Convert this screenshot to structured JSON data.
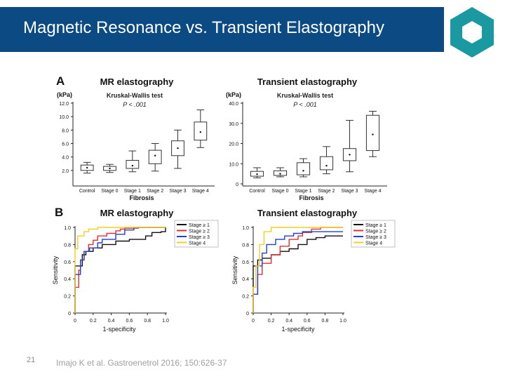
{
  "slide": {
    "title": "Magnetic Resonance vs. Transient Elastography",
    "page_number": "21",
    "reference": "Imajo K et al. Gastroenetrol 2016; 150:626-37"
  },
  "colors": {
    "banner": "#0b4a82",
    "logo": "#1a9aa0",
    "stage1": "#111111",
    "stage2": "#e03030",
    "stage3": "#2040d0",
    "stage4": "#f2d020"
  },
  "panel_a": {
    "label": "A",
    "xlabel": "Fibrosis"
  },
  "panel_b": {
    "label": "B",
    "legend": [
      "Stage ≥ 1",
      "Stage ≥ 2",
      "Stage ≥ 3",
      "Stage 4"
    ]
  },
  "chart_data": [
    {
      "type": "box",
      "title": "MR elastography",
      "test_label": "Kruskal-Wallis test",
      "p_value": "P < .001",
      "ylabel": "(kPa)",
      "xlabel": "Fibrosis",
      "ylim": [
        0,
        12
      ],
      "yticks": [
        "2.0",
        "4.0",
        "6.0",
        "8.0",
        "10.0",
        "12.0"
      ],
      "categories": [
        "Control",
        "Stage 0",
        "Stage 1",
        "Stage 2",
        "Stage 3",
        "Stage 4"
      ],
      "boxes": [
        {
          "min": 1.6,
          "q1": 2.0,
          "median": 2.4,
          "q3": 2.8,
          "max": 3.2,
          "mean": 2.4
        },
        {
          "min": 1.7,
          "q1": 2.0,
          "median": 2.3,
          "q3": 2.6,
          "max": 2.9,
          "mean": 2.3
        },
        {
          "min": 1.8,
          "q1": 2.3,
          "median": 2.7,
          "q3": 3.5,
          "max": 4.9,
          "mean": 2.7
        },
        {
          "min": 1.9,
          "q1": 3.0,
          "median": 4.2,
          "q3": 5.0,
          "max": 6.0,
          "mean": 4.2
        },
        {
          "min": 2.3,
          "q1": 4.2,
          "median": 5.3,
          "q3": 6.4,
          "max": 8.0,
          "mean": 5.3
        },
        {
          "min": 5.4,
          "q1": 6.5,
          "median": 7.7,
          "q3": 9.2,
          "max": 11.0,
          "mean": 7.7
        }
      ]
    },
    {
      "type": "box",
      "title": "Transient elastography",
      "test_label": "Kruskal-Wallis test",
      "p_value": "P < .001",
      "ylabel": "(kPa)",
      "xlabel": "Fibrosis",
      "ylim": [
        0,
        40
      ],
      "yticks": [
        "0",
        "10.0",
        "20.0",
        "30.0",
        "40.0"
      ],
      "categories": [
        "Control",
        "Stage 0",
        "Stage 1",
        "Stage 2",
        "Stage 3",
        "Stage 4"
      ],
      "boxes": [
        {
          "min": 3.0,
          "q1": 3.8,
          "median": 4.8,
          "q3": 6.2,
          "max": 8.0,
          "mean": 4.8
        },
        {
          "min": 3.5,
          "q1": 4.2,
          "median": 5.0,
          "q3": 6.5,
          "max": 8.0,
          "mean": 5.0
        },
        {
          "min": 3.5,
          "q1": 4.5,
          "median": 6.5,
          "q3": 10.5,
          "max": 12.5,
          "mean": 6.5
        },
        {
          "min": 5.0,
          "q1": 7.0,
          "median": 9.0,
          "q3": 13.5,
          "max": 18.5,
          "mean": 9.0
        },
        {
          "min": 6.0,
          "q1": 11.5,
          "median": 14.5,
          "q3": 17.5,
          "max": 31.5,
          "mean": 14.5
        },
        {
          "min": 13.5,
          "q1": 16.5,
          "median": 24.5,
          "q3": 34.0,
          "max": 36.0,
          "mean": 24.5
        }
      ]
    },
    {
      "type": "line",
      "title": "MR elastography",
      "xlabel": "1-specificity",
      "ylabel": "Sensitivity",
      "xlim": [
        0,
        1
      ],
      "ylim": [
        0,
        1
      ],
      "xticks": [
        "0",
        "0.2",
        "0.4",
        "0.6",
        "0.8",
        "1.0"
      ],
      "yticks": [
        "0",
        "0.2",
        "0.4",
        "0.6",
        "0.8",
        "1.0"
      ],
      "series": [
        {
          "name": "Stage ≥ 1",
          "color": "#111111",
          "x": [
            0,
            0,
            0.08,
            0.08,
            0.12,
            0.2,
            0.3,
            0.45,
            0.6,
            0.72,
            0.78,
            0.85,
            0.95,
            1.0
          ],
          "y": [
            0,
            0.55,
            0.55,
            0.68,
            0.72,
            0.76,
            0.8,
            0.84,
            0.86,
            0.86,
            0.9,
            0.94,
            0.95,
            1.0
          ]
        },
        {
          "name": "Stage ≥ 2",
          "color": "#e03030",
          "x": [
            0,
            0,
            0.04,
            0.06,
            0.1,
            0.15,
            0.2,
            0.25,
            0.35,
            0.45,
            0.5,
            0.55,
            0.7,
            1.0
          ],
          "y": [
            0,
            0.3,
            0.5,
            0.62,
            0.72,
            0.8,
            0.85,
            0.9,
            0.93,
            0.96,
            0.98,
            0.99,
            1.0,
            1.0
          ]
        },
        {
          "name": "Stage ≥ 3",
          "color": "#2040d0",
          "x": [
            0,
            0,
            0.06,
            0.1,
            0.16,
            0.25,
            0.3,
            0.38,
            0.45,
            0.55,
            0.65,
            1.0
          ],
          "y": [
            0,
            0.45,
            0.62,
            0.72,
            0.76,
            0.82,
            0.86,
            0.86,
            0.92,
            0.97,
            1.0,
            1.0
          ]
        },
        {
          "name": "Stage 4",
          "color": "#f2d020",
          "x": [
            0,
            0,
            0.03,
            0.07,
            0.1,
            0.15,
            0.25,
            0.4,
            1.0
          ],
          "y": [
            0,
            0.75,
            0.9,
            0.9,
            0.95,
            0.98,
            1.0,
            1.0,
            1.0
          ]
        }
      ]
    },
    {
      "type": "line",
      "title": "Transient elastography",
      "xlabel": "1-specificity",
      "ylabel": "Sensitivity",
      "xlim": [
        0,
        1
      ],
      "ylim": [
        0,
        1
      ],
      "xticks": [
        "0",
        "0.2",
        "0.4",
        "0.6",
        "0.8",
        "1.0"
      ],
      "yticks": [
        "0",
        "0.2",
        "0.4",
        "0.6",
        "0.8",
        "1.0"
      ],
      "series": [
        {
          "name": "Stage ≥ 1",
          "color": "#111111",
          "x": [
            0,
            0,
            0.05,
            0.1,
            0.2,
            0.3,
            0.4,
            0.5,
            0.6,
            0.7,
            0.8,
            1.0
          ],
          "y": [
            0,
            0.55,
            0.62,
            0.64,
            0.68,
            0.72,
            0.75,
            0.8,
            0.86,
            0.88,
            0.9,
            0.9
          ]
        },
        {
          "name": "Stage ≥ 2",
          "color": "#e03030",
          "x": [
            0,
            0,
            0.05,
            0.1,
            0.2,
            0.3,
            0.4,
            0.5,
            0.55,
            0.65,
            0.75,
            1.0
          ],
          "y": [
            0,
            0.22,
            0.45,
            0.58,
            0.68,
            0.78,
            0.86,
            0.9,
            0.94,
            0.98,
            1.0,
            1.0
          ]
        },
        {
          "name": "Stage ≥ 3",
          "color": "#2040d0",
          "x": [
            0,
            0,
            0.05,
            0.1,
            0.15,
            0.25,
            0.35,
            0.45,
            0.55,
            0.7,
            1.0
          ],
          "y": [
            0,
            0.22,
            0.55,
            0.7,
            0.8,
            0.86,
            0.9,
            0.93,
            0.95,
            0.95,
            0.95
          ]
        },
        {
          "name": "Stage 4",
          "color": "#f2d020",
          "x": [
            0,
            0,
            0.03,
            0.07,
            0.12,
            0.2,
            0.4,
            1.0
          ],
          "y": [
            0,
            0.3,
            0.55,
            0.8,
            0.95,
            1.0,
            1.0,
            1.0
          ]
        }
      ]
    }
  ]
}
